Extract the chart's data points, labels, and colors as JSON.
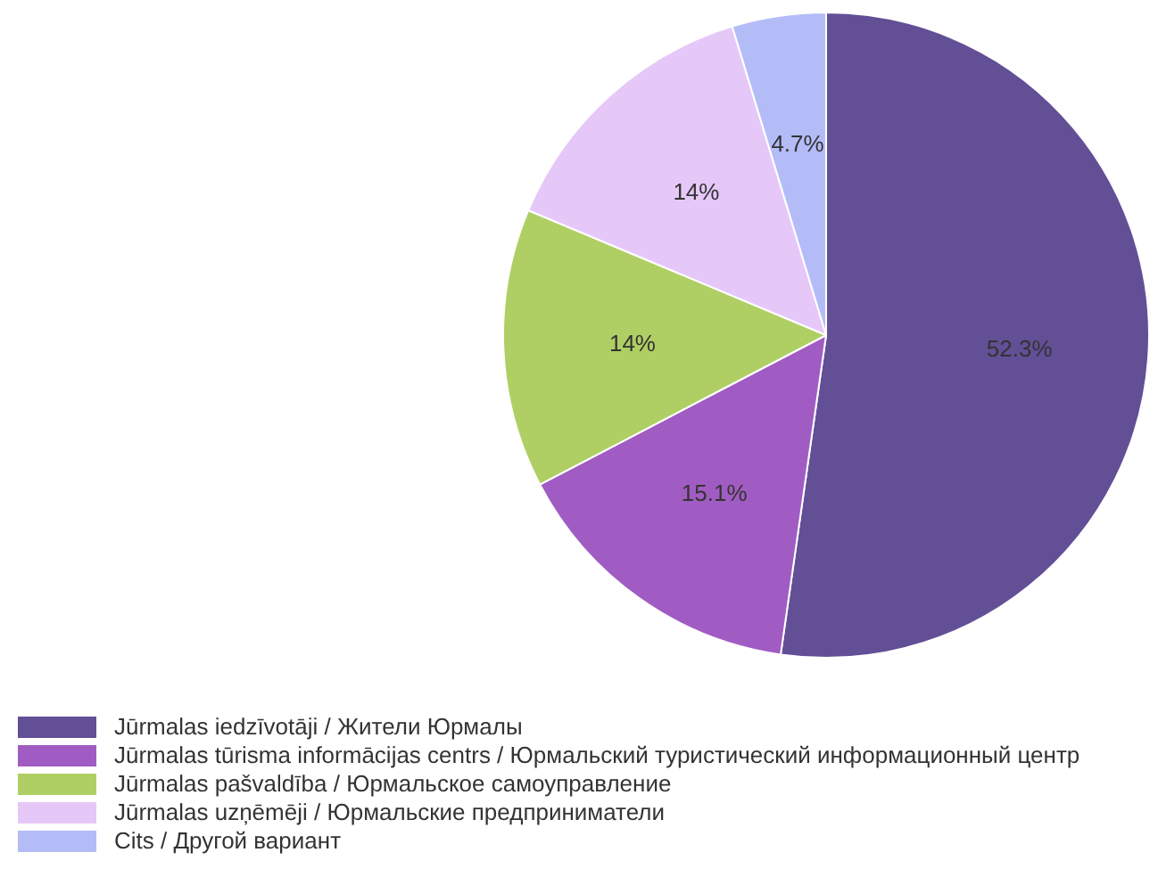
{
  "chart_data": {
    "type": "pie",
    "categories": [
      "Jūrmalas iedzīvotāji / Жители Юрмалы",
      "Jūrmalas tūrisma informācijas centrs / Юрмальский туристический информационный центр",
      "Jūrmalas pašvaldība / Юрмальское самоуправление",
      "Jūrmalas uzņēmēji / Юрмальские предприниматели",
      "Cits / Другой вариант"
    ],
    "values": [
      52.3,
      15.1,
      14,
      14,
      4.7
    ],
    "value_labels": [
      "52.3%",
      "15.1%",
      "14%",
      "14%",
      "4.7%"
    ],
    "colors": [
      "#624f96",
      "#a15cc3",
      "#afcf64",
      "#e6c8f8",
      "#b4bcf8"
    ],
    "legend": "bottom"
  }
}
